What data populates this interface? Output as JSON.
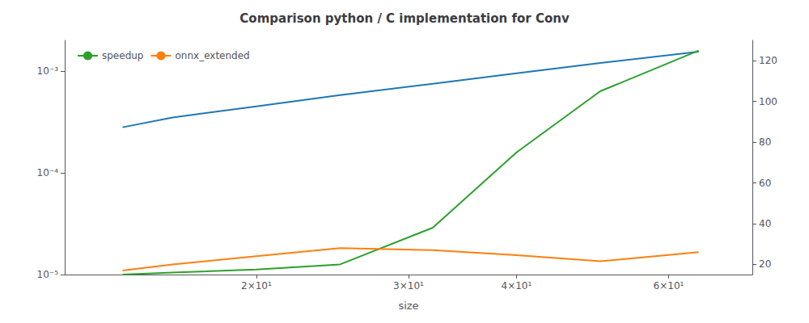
{
  "chart_data": {
    "type": "line",
    "title": "Comparison python / C implementation for Conv",
    "xlabel": "size",
    "x": [
      14,
      16,
      20,
      25,
      32,
      40,
      50,
      65
    ],
    "series": [
      {
        "color": "#1f77b4",
        "values": [
          0.00028,
          0.00035,
          0.00045,
          0.00058,
          0.00075,
          0.00095,
          0.0012,
          0.00155
        ]
      },
      {
        "name": "speedup",
        "color": "#2ca02c",
        "axis": "y2",
        "values": [
          15.0,
          16.0,
          17.5,
          20.0,
          38.0,
          75.0,
          105.0,
          125.0
        ]
      },
      {
        "name": "onnx_extended",
        "color": "#ff7f0e",
        "axis": "y2",
        "values": [
          17.0,
          20.0,
          24.0,
          28.0,
          27.0,
          24.5,
          21.5,
          26.0
        ]
      }
    ],
    "log": true,
    "xlim": [
      12,
      75
    ],
    "xticks": [
      {
        "value": 20,
        "label": "2×10¹"
      },
      {
        "value": 30,
        "label": "3×10¹"
      },
      {
        "value": 40,
        "label": "4×10¹"
      },
      {
        "value": 60,
        "label": "6×10¹"
      }
    ],
    "ylim": [
      1e-05,
      0.002
    ],
    "yticks": [
      {
        "value": 1e-05,
        "label": "10⁻⁵"
      },
      {
        "value": 0.0001,
        "label": "10⁻⁴"
      },
      {
        "value": 0.001,
        "label": "10⁻³"
      }
    ],
    "y2lim": [
      15,
      130
    ],
    "y2ticks": [
      20,
      40,
      60,
      80,
      100,
      120
    ],
    "grid": false,
    "legend": "upper left"
  }
}
